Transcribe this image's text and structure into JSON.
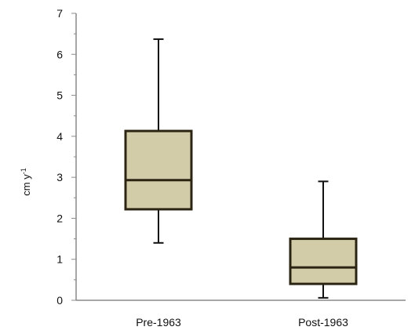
{
  "chart_data": {
    "type": "boxplot",
    "ylabel": "cm y",
    "ylabel_superscript": "-1",
    "ylim": [
      0,
      7
    ],
    "yticks": [
      "0",
      "1",
      "2",
      "3",
      "4",
      "5",
      "6",
      "7"
    ],
    "categories": [
      "Pre-1963",
      "Post-1963"
    ],
    "boxes": [
      {
        "category": "Pre-1963",
        "min": 1.4,
        "q1": 2.22,
        "median": 2.93,
        "q3": 4.13,
        "max": 6.37
      },
      {
        "category": "Post-1963",
        "min": 0.06,
        "q1": 0.4,
        "median": 0.8,
        "q3": 1.5,
        "max": 2.9
      }
    ],
    "box_fill": "#d3cca8",
    "box_stroke": "#2b2413",
    "grid": false,
    "legend": "none"
  }
}
